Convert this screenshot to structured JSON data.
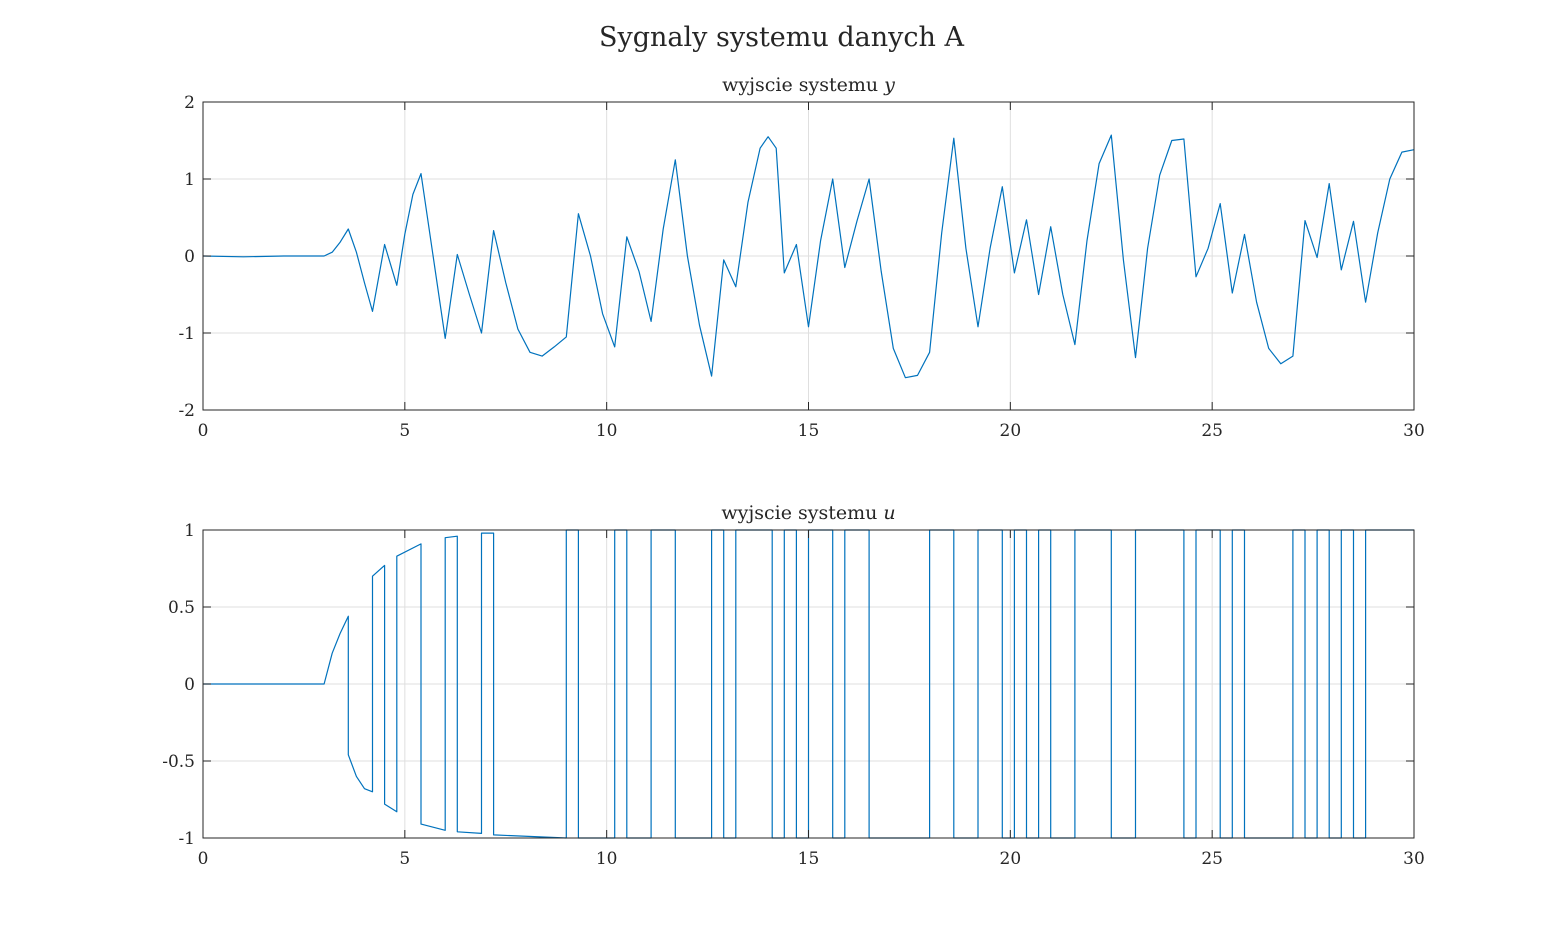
{
  "figure_title": "Sygnaly systemu danych A",
  "chart_data": [
    {
      "type": "line",
      "title": "wyjscie systemu",
      "title_var": "y",
      "xlabel": "",
      "ylabel": "",
      "xlim": [
        0,
        30
      ],
      "ylim": [
        -2,
        2
      ],
      "xticks": [
        0,
        5,
        10,
        15,
        20,
        25,
        30
      ],
      "yticks": [
        -2,
        -1,
        0,
        1,
        2
      ],
      "xtick_labels": [
        "0",
        "5",
        "10",
        "15",
        "20",
        "25",
        "30"
      ],
      "ytick_labels": [
        "-2",
        "-1",
        "0",
        "1",
        "2"
      ],
      "grid": true,
      "line_color": "#0072BD",
      "series": [
        {
          "x": [
            0,
            1,
            2,
            2.5,
            3.0,
            3.2,
            3.4,
            3.6,
            3.8,
            4.0,
            4.2,
            4.5,
            4.8,
            5.0,
            5.2,
            5.4,
            5.7,
            6.0,
            6.3,
            6.6,
            6.9,
            7.2,
            7.5,
            7.8,
            8.1,
            8.4,
            8.7,
            9.0,
            9.3,
            9.6,
            9.9,
            10.2,
            10.5,
            10.8,
            11.1,
            11.4,
            11.7,
            12.0,
            12.3,
            12.6,
            12.9,
            13.2,
            13.5,
            13.8,
            14.0,
            14.2,
            14.4,
            14.7,
            15.0,
            15.3,
            15.6,
            15.9,
            16.2,
            16.5,
            16.8,
            17.1,
            17.4,
            17.7,
            18.0,
            18.3,
            18.6,
            18.9,
            19.2,
            19.5,
            19.8,
            20.1,
            20.4,
            20.7,
            21.0,
            21.3,
            21.6,
            21.9,
            22.2,
            22.5,
            22.8,
            23.1,
            23.4,
            23.7,
            24.0,
            24.3,
            24.6,
            24.9,
            25.2,
            25.5,
            25.8,
            26.1,
            26.4,
            26.7,
            27.0,
            27.3,
            27.6,
            27.9,
            28.2,
            28.5,
            28.8,
            29.1,
            29.4,
            29.7,
            30.0
          ],
          "y": [
            0,
            -0.01,
            0,
            0,
            0,
            0.05,
            0.18,
            0.35,
            0.05,
            -0.35,
            -0.72,
            0.15,
            -0.38,
            0.28,
            0.8,
            1.07,
            0.0,
            -1.07,
            0.02,
            -0.5,
            -1.0,
            0.33,
            -0.35,
            -0.95,
            -1.25,
            -1.3,
            -1.18,
            -1.05,
            0.55,
            0.0,
            -0.75,
            -1.18,
            0.25,
            -0.2,
            -0.85,
            0.35,
            1.25,
            0.0,
            -0.9,
            -1.56,
            -0.05,
            -0.4,
            0.7,
            1.4,
            1.55,
            1.4,
            -0.22,
            0.15,
            -0.92,
            0.2,
            1.0,
            -0.15,
            0.45,
            1.0,
            -0.2,
            -1.2,
            -1.58,
            -1.55,
            -1.25,
            0.3,
            1.53,
            0.1,
            -0.92,
            0.1,
            0.9,
            -0.22,
            0.47,
            -0.5,
            0.38,
            -0.5,
            -1.15,
            0.2,
            1.2,
            1.57,
            -0.05,
            -1.32,
            0.1,
            1.05,
            1.5,
            1.52,
            -0.27,
            0.1,
            0.68,
            -0.48,
            0.28,
            -0.6,
            -1.2,
            -1.4,
            -1.3,
            0.46,
            -0.02,
            0.94,
            -0.18,
            0.45,
            -0.6,
            0.3,
            1.0,
            1.35,
            1.38
          ]
        }
      ]
    },
    {
      "type": "line",
      "title": "wyjscie systemu",
      "title_var": "u",
      "xlabel": "",
      "ylabel": "",
      "xlim": [
        0,
        30
      ],
      "ylim": [
        -1,
        1
      ],
      "xticks": [
        0,
        5,
        10,
        15,
        20,
        25,
        30
      ],
      "yticks": [
        -1,
        -0.5,
        0,
        0.5,
        1
      ],
      "xtick_labels": [
        "0",
        "5",
        "10",
        "15",
        "20",
        "25",
        "30"
      ],
      "ytick_labels": [
        "-1",
        "-0.5",
        "0",
        "0.5",
        "1"
      ],
      "grid": true,
      "line_color": "#0072BD",
      "series": [
        {
          "x": [
            0,
            3.0,
            3.2,
            3.4,
            3.6,
            3.6,
            3.8,
            4.0,
            4.2,
            4.2,
            4.5,
            4.5,
            4.8,
            4.8,
            5.4,
            5.4,
            6.0,
            6.0,
            6.3,
            6.3,
            6.9,
            6.9,
            7.2,
            7.2,
            9.0,
            9.0,
            9.3,
            9.3,
            10.2,
            10.2,
            10.5,
            10.5,
            11.1,
            11.1,
            11.7,
            11.7,
            12.6,
            12.6,
            12.9,
            12.9,
            13.2,
            13.2,
            14.1,
            14.1,
            14.4,
            14.4,
            14.7,
            14.7,
            15.0,
            15.0,
            15.6,
            15.6,
            15.9,
            15.9,
            16.5,
            16.5,
            18.0,
            18.0,
            18.6,
            18.6,
            19.2,
            19.2,
            19.8,
            19.8,
            20.1,
            20.1,
            20.4,
            20.4,
            20.7,
            20.7,
            21.0,
            21.0,
            21.6,
            21.6,
            22.5,
            22.5,
            23.1,
            23.1,
            24.3,
            24.3,
            24.6,
            24.6,
            25.2,
            25.2,
            25.5,
            25.5,
            25.8,
            25.8,
            27.0,
            27.0,
            27.3,
            27.3,
            27.6,
            27.6,
            27.9,
            27.9,
            28.2,
            28.2,
            28.5,
            28.5,
            28.8,
            28.8,
            30.0
          ],
          "y": [
            0,
            0,
            0.2,
            0.33,
            0.44,
            -0.46,
            -0.6,
            -0.68,
            -0.7,
            0.7,
            0.77,
            -0.78,
            -0.83,
            0.83,
            0.91,
            -0.91,
            -0.95,
            0.95,
            0.96,
            -0.96,
            -0.97,
            0.98,
            0.98,
            -0.98,
            -1,
            1,
            1,
            -1,
            -1,
            1,
            1,
            -1,
            -1,
            1,
            1,
            -1,
            -1,
            1,
            1,
            -1,
            -1,
            1,
            1,
            -1,
            -1,
            1,
            1,
            -1,
            -1,
            1,
            1,
            -1,
            -1,
            1,
            1,
            -1,
            -1,
            1,
            1,
            -1,
            -1,
            1,
            1,
            -1,
            -1,
            1,
            1,
            -1,
            -1,
            1,
            1,
            -1,
            -1,
            1,
            1,
            -1,
            -1,
            1,
            1,
            -1,
            -1,
            1,
            1,
            -1,
            -1,
            1,
            1,
            -1,
            -1,
            1,
            1,
            -1,
            -1,
            1,
            1,
            -1,
            -1,
            1,
            1,
            -1,
            -1,
            1,
            1
          ]
        }
      ]
    }
  ]
}
